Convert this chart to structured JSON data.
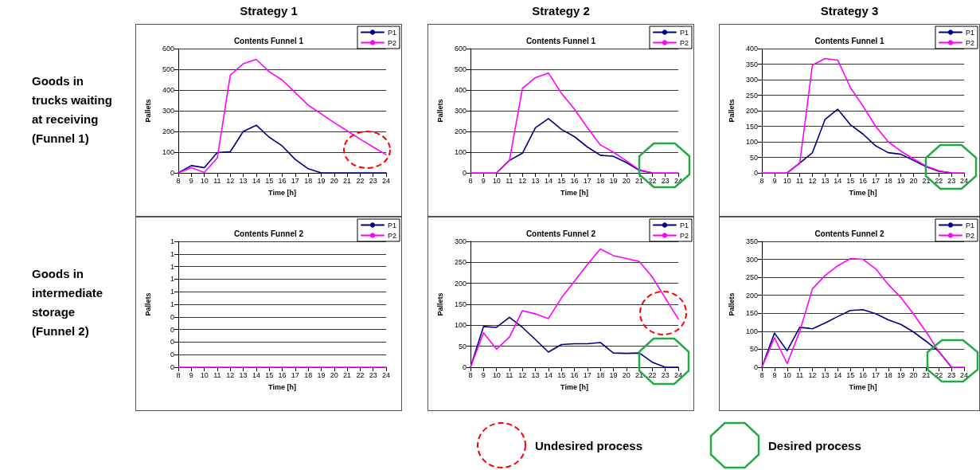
{
  "chart_data": [
    {
      "type": "line",
      "subtitle": "Strategy 1",
      "title": "Contents Funnel 1",
      "xlabel": "Time [h]",
      "ylabel": "Pallets",
      "annotations": [
        "Goods in\ntrucks waiting\nat receiving\n(Funnel 1)"
      ],
      "x": [
        8,
        9,
        10,
        11,
        12,
        13,
        14,
        15,
        16,
        17,
        18,
        19,
        20,
        21,
        22,
        23,
        24
      ],
      "xlim": [
        8,
        24
      ],
      "xticks": [
        8,
        9,
        10,
        11,
        12,
        13,
        14,
        15,
        16,
        17,
        18,
        19,
        20,
        21,
        22,
        23,
        24
      ],
      "ylim": [
        0,
        600
      ],
      "yticks": [
        0,
        100,
        200,
        300,
        400,
        500,
        600
      ],
      "grid": "y",
      "legend": "top right",
      "series": [
        {
          "name": "P1",
          "color": "#000080",
          "values": [
            0,
            35,
            25,
            98,
            102,
            200,
            230,
            172,
            130,
            65,
            20,
            0,
            0,
            0,
            0,
            0,
            0
          ]
        },
        {
          "name": "P2",
          "color": "#ff00ff",
          "values": [
            0,
            25,
            2,
            72,
            472,
            527,
            548,
            488,
            448,
            388,
            327,
            285,
            243,
            203,
            163,
            125,
            88
          ]
        }
      ]
    },
    {
      "type": "line",
      "subtitle": "Strategy 2",
      "title": "Contents Funnel 1",
      "xlabel": "Time [h]",
      "ylabel": "Pallets",
      "x": [
        8,
        9,
        10,
        11,
        12,
        13,
        14,
        15,
        16,
        17,
        18,
        19,
        20,
        21,
        22,
        23,
        24
      ],
      "xlim": [
        8,
        24
      ],
      "xticks": [
        8,
        9,
        10,
        11,
        12,
        13,
        14,
        15,
        16,
        17,
        18,
        19,
        20,
        21,
        22,
        23,
        24
      ],
      "ylim": [
        0,
        600
      ],
      "yticks": [
        0,
        100,
        200,
        300,
        400,
        500,
        600
      ],
      "grid": "y",
      "legend": "top right",
      "series": [
        {
          "name": "P1",
          "color": "#000080",
          "values": [
            null,
            null,
            0,
            60,
            95,
            218,
            262,
            210,
            175,
            125,
            85,
            80,
            50,
            12,
            0,
            null,
            null
          ]
        },
        {
          "name": "P2",
          "color": "#ff00ff",
          "values": [
            0,
            0,
            0,
            60,
            408,
            460,
            482,
            385,
            308,
            218,
            135,
            100,
            58,
            15,
            0,
            0,
            0
          ]
        }
      ]
    },
    {
      "type": "line",
      "subtitle": "Strategy 3",
      "title": "Contents Funnel 1",
      "xlabel": "Time [h]",
      "ylabel": "Pallets",
      "x": [
        8,
        9,
        10,
        11,
        12,
        13,
        14,
        15,
        16,
        17,
        18,
        19,
        20,
        21,
        22,
        23,
        24
      ],
      "xlim": [
        8,
        24
      ],
      "xticks": [
        8,
        9,
        10,
        11,
        12,
        13,
        14,
        15,
        16,
        17,
        18,
        19,
        20,
        21,
        22,
        23,
        24
      ],
      "ylim": [
        0,
        400
      ],
      "yticks": [
        0,
        50,
        100,
        150,
        200,
        250,
        300,
        350,
        400
      ],
      "grid": "y",
      "legend": "top right",
      "series": [
        {
          "name": "P1",
          "color": "#000080",
          "values": [
            null,
            null,
            0,
            32,
            65,
            172,
            205,
            155,
            125,
            87,
            65,
            60,
            40,
            20,
            5,
            0,
            null
          ]
        },
        {
          "name": "P2",
          "color": "#ff00ff",
          "values": [
            0,
            0,
            0,
            32,
            347,
            368,
            363,
            275,
            215,
            150,
            100,
            70,
            45,
            22,
            7,
            0,
            0
          ]
        }
      ]
    },
    {
      "type": "line",
      "title": "Contents Funnel 2",
      "xlabel": "Time [h]",
      "ylabel": "Pallets",
      "annotations": [
        "Goods in\nintermediate\nstorage\n(Funnel 2)"
      ],
      "x": [
        8,
        9,
        10,
        11,
        12,
        13,
        14,
        15,
        16,
        17,
        18,
        19,
        20,
        21,
        22,
        23,
        24
      ],
      "xlim": [
        8,
        24
      ],
      "xticks": [
        8,
        9,
        10,
        11,
        12,
        13,
        14,
        15,
        16,
        17,
        18,
        19,
        20,
        21,
        22,
        23,
        24
      ],
      "ylim": [
        0,
        1
      ],
      "yticks": [
        {
          "value": 0,
          "label": "0"
        },
        {
          "value": 0.1,
          "label": "0"
        },
        {
          "value": 0.2,
          "label": "0"
        },
        {
          "value": 0.3,
          "label": "0"
        },
        {
          "value": 0.4,
          "label": "0"
        },
        {
          "value": 0.5,
          "label": "1"
        },
        {
          "value": 0.6,
          "label": "1"
        },
        {
          "value": 0.7,
          "label": "1"
        },
        {
          "value": 0.8,
          "label": "1"
        },
        {
          "value": 0.9,
          "label": "1"
        },
        {
          "value": 1,
          "label": "1"
        }
      ],
      "grid": "y",
      "legend": "top right",
      "series": [
        {
          "name": "P1",
          "color": "#000080",
          "values": [
            null,
            null,
            null,
            null,
            null,
            null,
            null,
            null,
            null,
            null,
            null,
            null,
            null,
            null,
            null,
            null,
            null
          ]
        },
        {
          "name": "P2",
          "color": "#ff00ff",
          "values": [
            0,
            0,
            0,
            0,
            0,
            0,
            0,
            0,
            0,
            0,
            0,
            0,
            0,
            0,
            0,
            0,
            0
          ]
        }
      ]
    },
    {
      "type": "line",
      "title": "Contents Funnel 2",
      "xlabel": "Time [h]",
      "ylabel": "Pallets",
      "x": [
        8,
        9,
        10,
        11,
        12,
        13,
        14,
        15,
        16,
        17,
        18,
        19,
        20,
        21,
        22,
        23,
        24
      ],
      "xlim": [
        8,
        24
      ],
      "xticks": [
        8,
        9,
        10,
        11,
        12,
        13,
        14,
        15,
        16,
        17,
        18,
        19,
        20,
        21,
        22,
        23,
        24
      ],
      "ylim": [
        0,
        300
      ],
      "yticks": [
        0,
        50,
        100,
        150,
        200,
        250,
        300
      ],
      "grid": "y",
      "legend": "top right",
      "series": [
        {
          "name": "P1",
          "color": "#000080",
          "values": [
            0,
            97,
            95,
            119,
            95,
            66,
            36,
            54,
            56,
            56,
            59,
            34,
            33,
            34,
            12,
            0,
            0
          ]
        },
        {
          "name": "P2",
          "color": "#ff00ff",
          "values": [
            0,
            82,
            43,
            72,
            135,
            127,
            116,
            165,
            205,
            245,
            282,
            266,
            259,
            252,
            215,
            165,
            115
          ]
        }
      ]
    },
    {
      "type": "line",
      "title": "Contents Funnel 2",
      "xlabel": "Time [h]",
      "ylabel": "Pallets",
      "x": [
        8,
        9,
        10,
        11,
        12,
        13,
        14,
        15,
        16,
        17,
        18,
        19,
        20,
        21,
        22,
        23,
        24
      ],
      "xlim": [
        8,
        24
      ],
      "xticks": [
        8,
        9,
        10,
        11,
        12,
        13,
        14,
        15,
        16,
        17,
        18,
        19,
        20,
        21,
        22,
        23,
        24
      ],
      "ylim": [
        0,
        350
      ],
      "yticks": [
        0,
        50,
        100,
        150,
        200,
        250,
        300,
        350
      ],
      "grid": "y",
      "legend": "top right",
      "series": [
        {
          "name": "P1",
          "color": "#000080",
          "values": [
            0,
            95,
            46,
            111,
            107,
            123,
            141,
            158,
            160,
            149,
            132,
            119,
            98,
            72,
            44,
            0,
            null
          ]
        },
        {
          "name": "P2",
          "color": "#ff00ff",
          "values": [
            0,
            82,
            10,
            100,
            218,
            255,
            282,
            302,
            300,
            274,
            230,
            194,
            148,
            98,
            44,
            0,
            0
          ]
        }
      ]
    },
    {
      "type": "other",
      "annotations": [
        "Undesired process",
        "Desired process"
      ]
    }
  ]
}
